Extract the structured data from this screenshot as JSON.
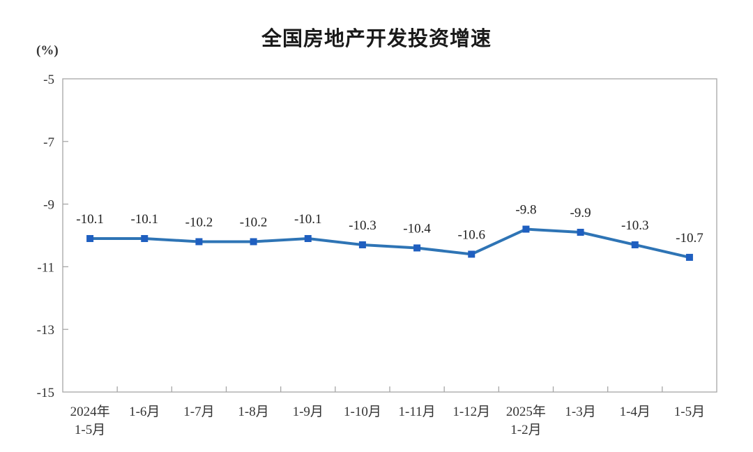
{
  "page": {
    "background": "#ffffff"
  },
  "chart_data": {
    "type": "line",
    "title": "全国房地产开发投资增速",
    "unit_label": "(%)",
    "categories": [
      "2024年\n1-5月",
      "1-6月",
      "1-7月",
      "1-8月",
      "1-9月",
      "1-10月",
      "1-11月",
      "1-12月",
      "2025年\n1-2月",
      "1-3月",
      "1-4月",
      "1-5月"
    ],
    "series": [
      {
        "name": "全国房地产开发投资增速",
        "values": [
          -10.1,
          -10.1,
          -10.2,
          -10.2,
          -10.1,
          -10.3,
          -10.4,
          -10.6,
          -9.8,
          -9.9,
          -10.3,
          -10.7
        ],
        "labels": [
          "-10.1",
          "-10.1",
          "-10.2",
          "-10.2",
          "-10.1",
          "-10.3",
          "-10.4",
          "-10.6",
          "-9.8",
          "-9.9",
          "-10.3",
          "-10.7"
        ]
      }
    ],
    "xlabel": "",
    "ylabel": "(%)",
    "ylim": [
      -15,
      -5
    ],
    "yticks": [
      -5,
      -7,
      -9,
      -11,
      -13,
      -15
    ],
    "ytick_labels": [
      "-5",
      "-7",
      "-9",
      "-11",
      "-13",
      "-15"
    ],
    "grid": false,
    "legend_position": "none",
    "colors": {
      "line": "#2e74b5",
      "marker": "#1f5fc0",
      "axis_border": "#a6a6a6",
      "tick": "#a6a6a6",
      "title_text": "#1a1a1a",
      "axis_text": "#333333",
      "point_label_text": "#1f1f1f"
    }
  }
}
